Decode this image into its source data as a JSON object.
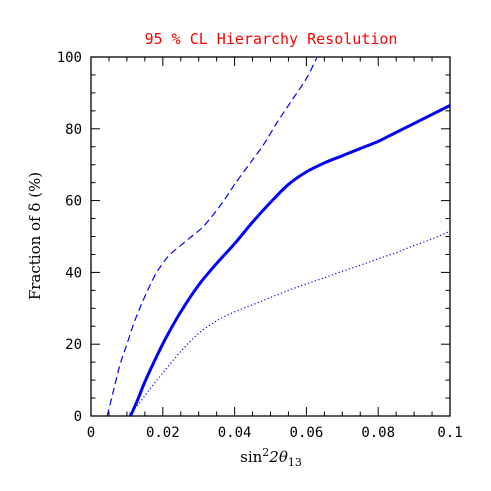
{
  "chart_data": {
    "type": "line",
    "title": "95 % CL Hierarchy Resolution",
    "title_color": "#ff0000",
    "xlabel": {
      "base": "sin",
      "sup": "2",
      "mid": "2θ",
      "sub": "13"
    },
    "ylabel": "Fraction of δ (%)",
    "xlim": [
      0,
      0.1
    ],
    "ylim": [
      0,
      100
    ],
    "x_ticks": [
      "0",
      "0.02",
      "0.04",
      "0.06",
      "0.08",
      "0.1"
    ],
    "x_tick_values": [
      0,
      0.02,
      0.04,
      0.06,
      0.08,
      0.1
    ],
    "y_ticks": [
      "0",
      "20",
      "40",
      "60",
      "80",
      "100"
    ],
    "y_tick_values": [
      0,
      20,
      40,
      60,
      80,
      100
    ],
    "grid": false,
    "legend": "none",
    "line_color": "#0000ff",
    "series": [
      {
        "style": "solid",
        "x": [
          0.011,
          0.013,
          0.015,
          0.018,
          0.021,
          0.025,
          0.03,
          0.035,
          0.04,
          0.045,
          0.05,
          0.055,
          0.06,
          0.065,
          0.07,
          0.075,
          0.08,
          0.085,
          0.09,
          0.095,
          0.1
        ],
        "y": [
          0,
          4.5,
          9.5,
          16,
          22,
          29,
          36.5,
          42.5,
          48,
          54,
          59.5,
          64.5,
          68,
          70.5,
          72.5,
          74.5,
          76.5,
          79,
          81.5,
          84,
          86.5
        ]
      },
      {
        "style": "dashed",
        "x": [
          0.0045,
          0.006,
          0.008,
          0.01,
          0.012,
          0.014,
          0.016,
          0.018,
          0.02,
          0.022,
          0.025,
          0.028,
          0.031,
          0.034,
          0.037,
          0.04,
          0.044,
          0.048,
          0.052,
          0.056,
          0.06,
          0.063
        ],
        "y": [
          0,
          6,
          14,
          20,
          26,
          31,
          35.5,
          39.5,
          42.5,
          45,
          47.5,
          50,
          52.5,
          56,
          60,
          64.5,
          70,
          75.5,
          82,
          88,
          94,
          100
        ]
      },
      {
        "style": "dotted",
        "x": [
          0.01,
          0.013,
          0.016,
          0.02,
          0.025,
          0.03,
          0.035,
          0.04,
          0.045,
          0.05,
          0.055,
          0.06,
          0.065,
          0.07,
          0.075,
          0.08,
          0.085,
          0.09,
          0.095,
          0.1
        ],
        "y": [
          0,
          3,
          7,
          12,
          18,
          23,
          26.5,
          29,
          31,
          33,
          35,
          36.8,
          38.5,
          40.3,
          42,
          43.8,
          45.5,
          47.5,
          49.3,
          51.5
        ]
      }
    ]
  }
}
